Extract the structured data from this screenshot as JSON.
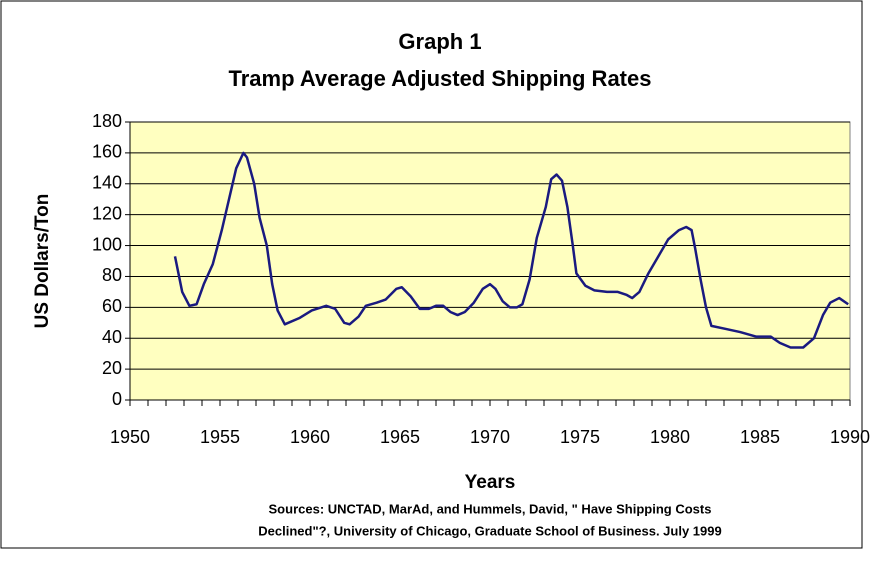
{
  "chart_data": {
    "type": "line",
    "title": [
      "Graph 1",
      "Tramp Average Adjusted Shipping Rates"
    ],
    "x_label": "Years",
    "y_label": "US Dollars/Ton",
    "sources": [
      "Sources:  UNCTAD, MarAd, and Hummels, David, \" Have Shipping Costs",
      "Declined\"?, University of Chicago, Graduate School of Business.  July 1999"
    ],
    "xlim": [
      1950,
      1990
    ],
    "xticks": [
      1950,
      1955,
      1960,
      1965,
      1970,
      1975,
      1980,
      1985,
      1990
    ],
    "ylim": [
      0,
      180
    ],
    "yticks": [
      0,
      20,
      40,
      60,
      80,
      100,
      120,
      140,
      160,
      180
    ],
    "grid": true,
    "plot_background": "#ffffc0",
    "series": [
      {
        "color": "#1a1a80",
        "x": [
          1952.5,
          1952.9,
          1953.3,
          1953.7,
          1954.1,
          1954.6,
          1955.1,
          1955.5,
          1955.9,
          1956.3,
          1956.5,
          1956.9,
          1957.2,
          1957.6,
          1957.9,
          1958.2,
          1958.6,
          1959.4,
          1960.1,
          1960.9,
          1961.4,
          1961.9,
          1962.2,
          1962.7,
          1963.1,
          1963.7,
          1964.2,
          1964.8,
          1965.1,
          1965.6,
          1966.1,
          1966.6,
          1967.0,
          1967.4,
          1967.8,
          1968.2,
          1968.6,
          1969.1,
          1969.6,
          1970.0,
          1970.3,
          1970.7,
          1971.1,
          1971.5,
          1971.8,
          1972.2,
          1972.6,
          1973.1,
          1973.4,
          1973.7,
          1974.0,
          1974.3,
          1974.6,
          1974.8,
          1975.3,
          1975.8,
          1976.5,
          1977.1,
          1977.6,
          1977.9,
          1978.3,
          1978.8,
          1979.4,
          1979.9,
          1980.5,
          1980.9,
          1981.2,
          1981.4,
          1981.7,
          1982.0,
          1982.3,
          1983.1,
          1983.9,
          1984.8,
          1985.6,
          1986.1,
          1986.7,
          1987.4,
          1988.0,
          1988.5,
          1988.9,
          1989.4,
          1989.9
        ],
        "values": [
          93,
          70,
          61,
          62,
          75,
          88,
          110,
          130,
          150,
          160,
          157,
          140,
          118,
          100,
          75,
          58,
          49,
          53,
          58,
          61,
          59,
          50,
          49,
          54,
          61,
          63,
          65,
          72,
          73,
          67,
          59,
          59,
          61,
          61,
          57,
          55,
          57,
          63,
          72,
          75,
          72,
          64,
          60,
          60,
          62,
          78,
          105,
          125,
          143,
          146,
          142,
          125,
          100,
          82,
          74,
          71,
          70,
          70,
          68,
          66,
          70,
          82,
          94,
          104,
          110,
          112,
          110,
          98,
          78,
          60,
          48,
          46,
          44,
          41,
          41,
          37,
          34,
          34,
          40,
          55,
          63,
          66,
          62
        ]
      }
    ]
  }
}
